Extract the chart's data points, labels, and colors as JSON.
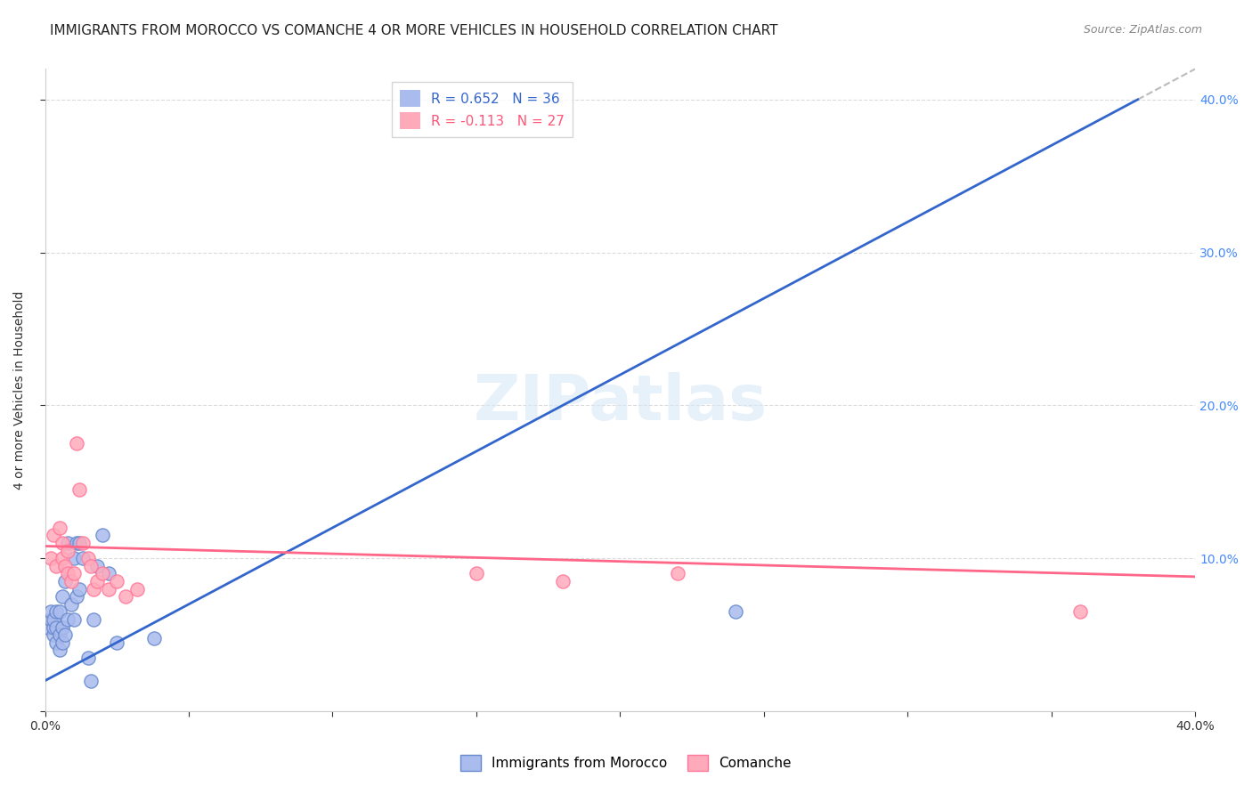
{
  "title": "IMMIGRANTS FROM MOROCCO VS COMANCHE 4 OR MORE VEHICLES IN HOUSEHOLD CORRELATION CHART",
  "source": "Source: ZipAtlas.com",
  "ylabel": "4 or more Vehicles in Household",
  "xlim": [
    0.0,
    0.4
  ],
  "ylim": [
    0.0,
    0.42
  ],
  "legend_line1": "R = 0.652   N = 36",
  "legend_line2": "R = -0.113   N = 27",
  "watermark": "ZIPatlas",
  "blue_scatter_x": [
    0.001,
    0.002,
    0.002,
    0.003,
    0.003,
    0.003,
    0.004,
    0.004,
    0.004,
    0.005,
    0.005,
    0.005,
    0.006,
    0.006,
    0.006,
    0.007,
    0.007,
    0.008,
    0.008,
    0.009,
    0.01,
    0.01,
    0.011,
    0.011,
    0.012,
    0.012,
    0.013,
    0.015,
    0.016,
    0.017,
    0.018,
    0.02,
    0.022,
    0.025,
    0.038,
    0.24
  ],
  "blue_scatter_y": [
    0.055,
    0.06,
    0.065,
    0.05,
    0.055,
    0.06,
    0.045,
    0.055,
    0.065,
    0.04,
    0.05,
    0.065,
    0.045,
    0.055,
    0.075,
    0.05,
    0.085,
    0.06,
    0.11,
    0.07,
    0.06,
    0.1,
    0.075,
    0.11,
    0.08,
    0.11,
    0.1,
    0.035,
    0.02,
    0.06,
    0.095,
    0.115,
    0.09,
    0.045,
    0.048,
    0.065
  ],
  "pink_scatter_x": [
    0.002,
    0.003,
    0.004,
    0.005,
    0.006,
    0.006,
    0.007,
    0.008,
    0.008,
    0.009,
    0.01,
    0.011,
    0.012,
    0.013,
    0.015,
    0.016,
    0.017,
    0.018,
    0.02,
    0.022,
    0.025,
    0.028,
    0.032,
    0.15,
    0.18,
    0.22,
    0.36
  ],
  "pink_scatter_y": [
    0.1,
    0.115,
    0.095,
    0.12,
    0.1,
    0.11,
    0.095,
    0.09,
    0.105,
    0.085,
    0.09,
    0.175,
    0.145,
    0.11,
    0.1,
    0.095,
    0.08,
    0.085,
    0.09,
    0.08,
    0.085,
    0.075,
    0.08,
    0.09,
    0.085,
    0.09,
    0.065
  ],
  "blue_line_x": [
    0.0,
    0.38
  ],
  "blue_line_y": [
    0.02,
    0.4
  ],
  "pink_line_x": [
    0.0,
    0.4
  ],
  "pink_line_y": [
    0.108,
    0.088
  ],
  "blue_trendline_color": "#3366cc",
  "pink_trendline_color": "#ff6688",
  "blue_dot_color": "#aabbee",
  "pink_dot_color": "#ffaabb",
  "blue_dot_edge": "#6688cc",
  "pink_dot_edge": "#ff7799",
  "grid_color": "#cccccc",
  "background_color": "#ffffff",
  "title_fontsize": 11,
  "axis_label_fontsize": 10,
  "tick_fontsize": 10,
  "source_fontsize": 9,
  "dashed_trendline_color": "#bbbbbb"
}
